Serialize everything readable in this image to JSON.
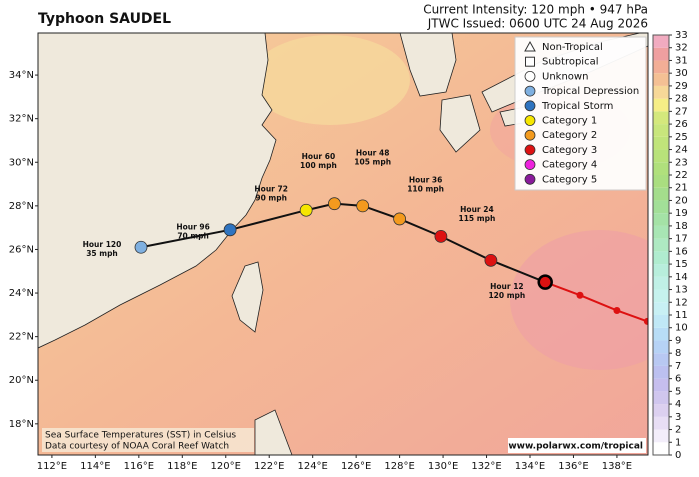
{
  "header": {
    "title": "Typhoon SAUDEL",
    "intensity": "Current Intensity: 120 mph • 947 hPa",
    "issued": "JTWC Issued: 0600 UTC 24 Aug 2026"
  },
  "map": {
    "lon_range": [
      111.36,
      139.43
    ],
    "lat_range": [
      16.57,
      35.93
    ],
    "lon_ticks": [
      {
        "value": 112,
        "label": "112°E"
      },
      {
        "value": 114,
        "label": "114°E"
      },
      {
        "value": 116,
        "label": "116°E"
      },
      {
        "value": 118,
        "label": "118°E"
      },
      {
        "value": 120,
        "label": "120°E"
      },
      {
        "value": 122,
        "label": "122°E"
      },
      {
        "value": 124,
        "label": "124°E"
      },
      {
        "value": 126,
        "label": "126°E"
      },
      {
        "value": 128,
        "label": "128°E"
      },
      {
        "value": 130,
        "label": "130°E"
      },
      {
        "value": 132,
        "label": "132°E"
      },
      {
        "value": 134,
        "label": "134°E"
      },
      {
        "value": 136,
        "label": "136°E"
      },
      {
        "value": 138,
        "label": "138°E"
      }
    ],
    "lat_ticks": [
      {
        "value": 18,
        "label": "18°N"
      },
      {
        "value": 20,
        "label": "20°N"
      },
      {
        "value": 22,
        "label": "22°N"
      },
      {
        "value": 24,
        "label": "24°N"
      },
      {
        "value": 26,
        "label": "26°N"
      },
      {
        "value": 28,
        "label": "28°N"
      },
      {
        "value": 30,
        "label": "30°N"
      },
      {
        "value": 32,
        "label": "32°N"
      },
      {
        "value": 34,
        "label": "34°N"
      }
    ]
  },
  "track": {
    "past": [
      {
        "lon": 139.4,
        "lat": 22.7,
        "color": "#dd1111"
      },
      {
        "lon": 138.0,
        "lat": 23.2,
        "color": "#dd1111"
      },
      {
        "lon": 136.3,
        "lat": 23.9,
        "color": "#dd1111"
      }
    ],
    "current": {
      "lon": 134.7,
      "lat": 24.5,
      "color": "#dd1111"
    },
    "forecast": [
      {
        "label": "Hour 12",
        "wind": "120 mph",
        "lon": 132.2,
        "lat": 25.5,
        "color": "#dd1111"
      },
      {
        "label": "Hour 24",
        "wind": "115 mph",
        "lon": 129.9,
        "lat": 26.6,
        "color": "#dd1111"
      },
      {
        "label": "Hour 36",
        "wind": "110 mph",
        "lon": 128.0,
        "lat": 27.4,
        "color": "#f39a1e"
      },
      {
        "label": "Hour 48",
        "wind": "105 mph",
        "lon": 126.3,
        "lat": 28.0,
        "color": "#f39a1e"
      },
      {
        "label": "Hour 60",
        "wind": "100 mph",
        "lon": 125.0,
        "lat": 28.1,
        "color": "#f39a1e"
      },
      {
        "label": "Hour 72",
        "wind": "90 mph",
        "lon": 123.7,
        "lat": 27.8,
        "color": "#f6e600"
      },
      {
        "label": "Hour 96",
        "wind": "70 mph",
        "lon": 120.2,
        "lat": 26.9,
        "color": "#2f74c0"
      },
      {
        "label": "Hour 120",
        "wind": "35 mph",
        "lon": 116.1,
        "lat": 26.1,
        "color": "#7fb0e0"
      }
    ]
  },
  "legend": [
    {
      "label": "Non-Tropical",
      "symbol": "triangle",
      "color": "#ffffff"
    },
    {
      "label": "Subtropical",
      "symbol": "square",
      "color": "#ffffff"
    },
    {
      "label": "Unknown",
      "symbol": "circle",
      "color": "#ffffff"
    },
    {
      "label": "Tropical Depression",
      "symbol": "circle",
      "color": "#7fb0e0"
    },
    {
      "label": "Tropical Storm",
      "symbol": "circle",
      "color": "#2f74c0"
    },
    {
      "label": "Category 1",
      "symbol": "circle",
      "color": "#f6e600"
    },
    {
      "label": "Category 2",
      "symbol": "circle",
      "color": "#f39a1e"
    },
    {
      "label": "Category 3",
      "symbol": "circle",
      "color": "#dd1111"
    },
    {
      "label": "Category 4",
      "symbol": "circle",
      "color": "#ee22dd"
    },
    {
      "label": "Category 5",
      "symbol": "circle",
      "color": "#8a1a9a"
    }
  ],
  "colorbar": {
    "lim": [
      0,
      33
    ],
    "ticks": [
      0,
      1,
      2,
      3,
      4,
      5,
      6,
      7,
      8,
      9,
      10,
      11,
      12,
      13,
      14,
      15,
      16,
      17,
      18,
      19,
      20,
      21,
      22,
      23,
      24,
      25,
      26,
      27,
      28,
      29,
      30,
      31,
      32,
      33
    ],
    "colors": [
      "#ffffff",
      "#f3eefa",
      "#e8def5",
      "#dcd0f0",
      "#d0c6ee",
      "#c6beee",
      "#bcc0f0",
      "#b8c8f2",
      "#b6d2f5",
      "#b8ddf6",
      "#c0e8f6",
      "#c8f0f4",
      "#c6f2ee",
      "#c0f0e6",
      "#b8eedc",
      "#b0eccf",
      "#aee9c2",
      "#a8e6b4",
      "#a4e2a6",
      "#a2df98",
      "#a4dd8c",
      "#aade80",
      "#b0e07c",
      "#b8e27a",
      "#c0e47a",
      "#c8e67c",
      "#d4e87c",
      "#f6ee86",
      "#f7d898",
      "#f4c094",
      "#f2ae96",
      "#ef9fa0",
      "#f1abc0"
    ]
  },
  "footer": {
    "sst_note": "Sea Surface Temperatures (SST) in Celsius",
    "credit": "Data courtesy of NOAA Coral Reef Watch",
    "website": "www.polarwx.com/tropical"
  }
}
